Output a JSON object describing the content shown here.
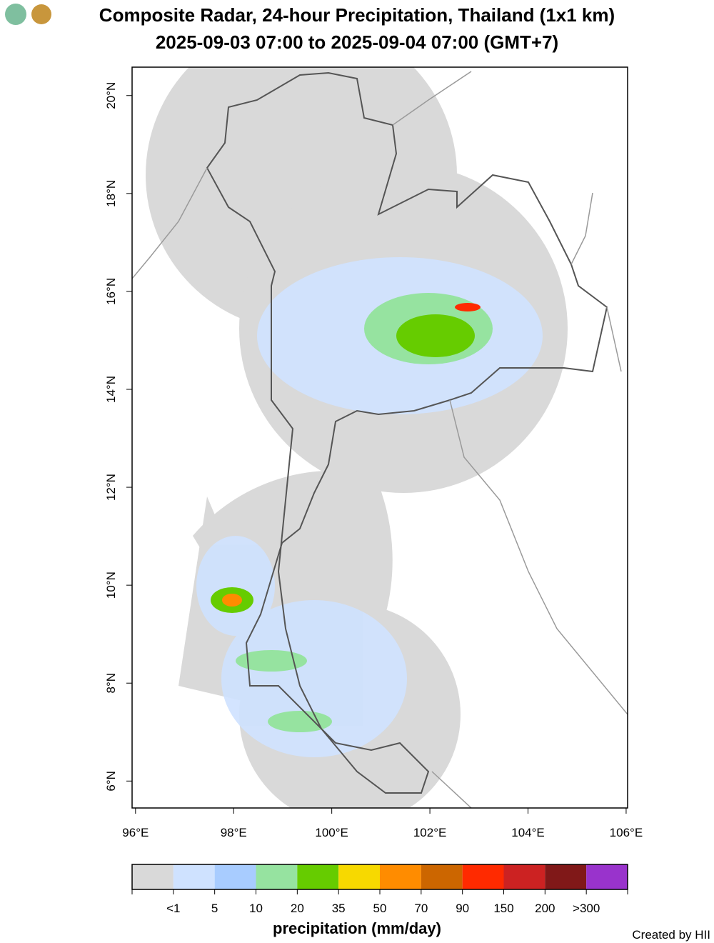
{
  "header": {
    "title": "Composite Radar, 24-hour Precipitation, Thailand (1x1 km)",
    "subtitle": "2025-09-03 07:00 to 2025-09-04 07:00 (GMT+7)"
  },
  "map": {
    "xlim": [
      95.93,
      106.03
    ],
    "ylim": [
      5.45,
      20.58
    ],
    "xticks": [
      {
        "value": 96,
        "label": "96°E"
      },
      {
        "value": 98,
        "label": "98°E"
      },
      {
        "value": 100,
        "label": "100°E"
      },
      {
        "value": 102,
        "label": "102°E"
      },
      {
        "value": 104,
        "label": "104°E"
      },
      {
        "value": 106,
        "label": "106°E"
      }
    ],
    "yticks": [
      {
        "value": 6,
        "label": "6°N"
      },
      {
        "value": 8,
        "label": "8°N"
      },
      {
        "value": 10,
        "label": "10°N"
      },
      {
        "value": 12,
        "label": "12°N"
      },
      {
        "value": 14,
        "label": "14°N"
      },
      {
        "value": 16,
        "label": "16°N"
      },
      {
        "value": 18,
        "label": "18°N"
      },
      {
        "value": 20,
        "label": "20°N"
      }
    ]
  },
  "legend": {
    "title": "precipitation (mm/day)",
    "colors": [
      "#d9d9d9",
      "#cfe2ff",
      "#a8ccff",
      "#96e3a0",
      "#66cc00",
      "#f7d900",
      "#ff8c00",
      "#cc6600",
      "#ff2a00",
      "#cc2222",
      "#801818",
      "#9933cc"
    ],
    "labels": [
      "<1",
      "5",
      "10",
      "20",
      "35",
      "50",
      "70",
      "90",
      "150",
      "200",
      ">300"
    ]
  },
  "footer": {
    "credit": "Created by HII"
  }
}
